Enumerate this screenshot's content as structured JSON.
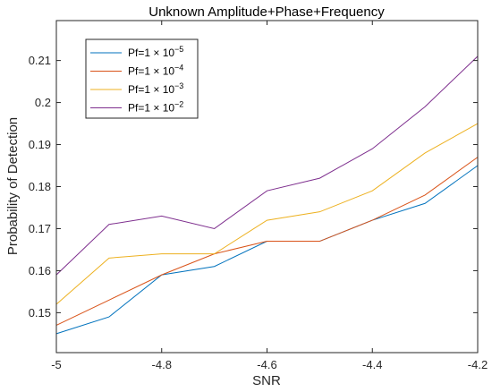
{
  "chart_data": {
    "type": "line",
    "title": "Unknown Amplitude+Phase+Frequency",
    "xlabel": "SNR",
    "ylabel": "Probability of Detection",
    "xlim": [
      -5,
      -4.2
    ],
    "ylim": [
      0.1405,
      0.2195
    ],
    "x": [
      -5,
      -4.9,
      -4.8,
      -4.7,
      -4.6,
      -4.5,
      -4.4,
      -4.3,
      -4.2
    ],
    "x_ticks": [
      "-5",
      "-4.8",
      "-4.6",
      "-4.4",
      "-4.2"
    ],
    "y_ticks": [
      "0.15",
      "0.16",
      "0.17",
      "0.18",
      "0.19",
      "0.2",
      "0.21"
    ],
    "grid": false,
    "legend_position": "top-left",
    "series": [
      {
        "base": "Pf=1 × 10",
        "exp": "−5",
        "color": "#0072BD",
        "values": [
          0.145,
          0.149,
          0.159,
          0.161,
          0.167,
          0.167,
          0.172,
          0.176,
          0.185
        ]
      },
      {
        "base": "Pf=1 × 10",
        "exp": "−4",
        "color": "#D95319",
        "values": [
          0.147,
          0.153,
          0.159,
          0.164,
          0.167,
          0.167,
          0.172,
          0.178,
          0.187
        ]
      },
      {
        "base": "Pf=1 × 10",
        "exp": "−3",
        "color": "#EDB120",
        "values": [
          0.152,
          0.163,
          0.164,
          0.164,
          0.172,
          0.174,
          0.179,
          0.188,
          0.195
        ]
      },
      {
        "base": "Pf=1 × 10",
        "exp": "−2",
        "color": "#7E2F8E",
        "values": [
          0.159,
          0.171,
          0.173,
          0.17,
          0.179,
          0.182,
          0.189,
          0.199,
          0.211
        ]
      }
    ]
  }
}
